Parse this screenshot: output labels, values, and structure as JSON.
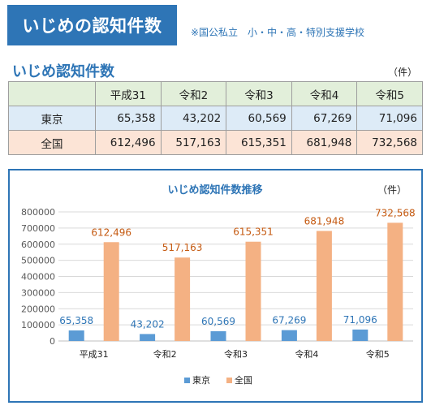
{
  "header": {
    "title": "いじめの認知件数",
    "note": "※国公私立　小・中・高・特別支援学校"
  },
  "table": {
    "title": "いじめ認知件数",
    "unit": "（件）",
    "columns": [
      "平成31",
      "令和2",
      "令和3",
      "令和4",
      "令和5"
    ],
    "rows": [
      {
        "label": "東京",
        "values": [
          "65,358",
          "43,202",
          "60,569",
          "67,269",
          "71,096"
        ]
      },
      {
        "label": "全国",
        "values": [
          "612,496",
          "517,163",
          "615,351",
          "681,948",
          "732,568"
        ]
      }
    ]
  },
  "chart_data": {
    "type": "bar",
    "title": "いじめ認知件数推移",
    "unit": "（件）",
    "categories": [
      "平成31",
      "令和2",
      "令和3",
      "令和4",
      "令和5"
    ],
    "series": [
      {
        "name": "東京",
        "values": [
          65358,
          43202,
          60569,
          67269,
          71096
        ],
        "labels": [
          "65,358",
          "43,202",
          "60,569",
          "67,269",
          "71,096"
        ],
        "color": "#5b9bd5"
      },
      {
        "name": "全国",
        "values": [
          612496,
          517163,
          615351,
          681948,
          732568
        ],
        "labels": [
          "612,496",
          "517,163",
          "615,351",
          "681,948",
          "732,568"
        ],
        "color": "#f4b183"
      }
    ],
    "ylim": [
      0,
      800000
    ],
    "yticks": [
      "0",
      "100000",
      "200000",
      "300000",
      "400000",
      "500000",
      "600000",
      "700000",
      "800000"
    ],
    "grid": true,
    "legend": "bottom",
    "tokyo_label_color": "#2e75b6",
    "zenkoku_label_color": "#c55a11"
  }
}
